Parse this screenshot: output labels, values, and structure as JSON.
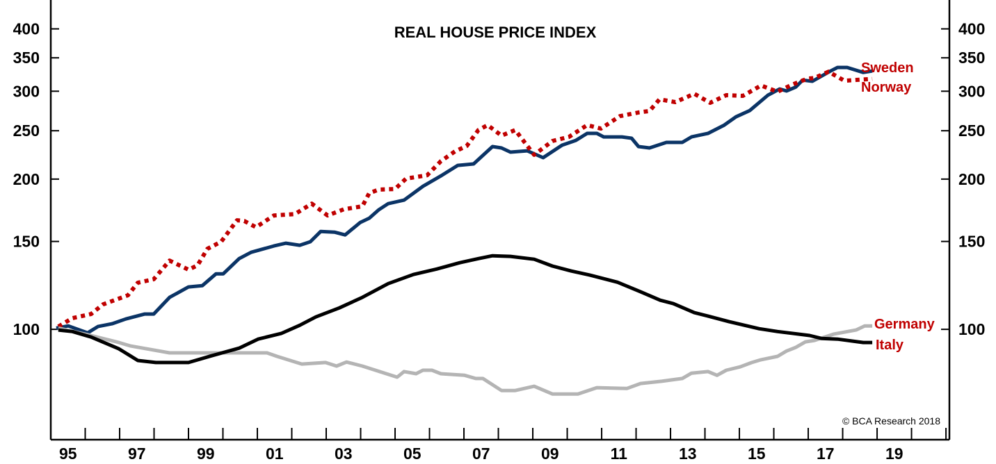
{
  "chart_data": {
    "type": "line",
    "title": "REAL HOUSE PRICE INDEX",
    "xlabel": "",
    "ylabel": "",
    "y_scale": "log",
    "ylim": [
      60.1,
      457
    ],
    "xlim": [
      1995,
      2021.1
    ],
    "y_ticks": [
      100,
      150,
      200,
      250,
      300,
      350,
      400
    ],
    "y_tick_labels": [
      "100",
      "150",
      "200",
      "250",
      "300",
      "350",
      "400"
    ],
    "x_ticks_years": [
      1995,
      1996,
      1997,
      1998,
      1999,
      2000,
      2001,
      2002,
      2003,
      2004,
      2005,
      2006,
      2007,
      2008,
      2009,
      2010,
      2011,
      2012,
      2013,
      2014,
      2015,
      2016,
      2017,
      2018,
      2019,
      2020,
      2021
    ],
    "x_tick_labels": [
      {
        "year": 1995.5,
        "label": "95"
      },
      {
        "year": 1997.5,
        "label": "97"
      },
      {
        "year": 1999.5,
        "label": "99"
      },
      {
        "year": 2001.5,
        "label": "01"
      },
      {
        "year": 2003.5,
        "label": "03"
      },
      {
        "year": 2005.5,
        "label": "05"
      },
      {
        "year": 2007.5,
        "label": "07"
      },
      {
        "year": 2009.5,
        "label": "09"
      },
      {
        "year": 2011.5,
        "label": "11"
      },
      {
        "year": 2013.5,
        "label": "13"
      },
      {
        "year": 2015.5,
        "label": "15"
      },
      {
        "year": 2017.5,
        "label": "17"
      },
      {
        "year": 2019.5,
        "label": "19"
      }
    ],
    "grid": false,
    "credit": "© BCA Research 2018",
    "series": [
      {
        "name": "Sweden",
        "color": "#0b3466",
        "style": "solid",
        "x": [
          1995.16,
          1995.51,
          1996.07,
          1996.37,
          1996.78,
          1997.18,
          1997.73,
          1997.99,
          1998.45,
          1999.0,
          1999.4,
          1999.8,
          2000.01,
          2000.47,
          2000.82,
          2001.48,
          2001.83,
          2002.23,
          2002.54,
          2002.84,
          2003.24,
          2003.55,
          2003.99,
          2004.25,
          2004.52,
          2004.8,
          2005.26,
          2005.81,
          2006.33,
          2006.82,
          2007.28,
          2007.83,
          2008.09,
          2008.35,
          2008.84,
          2009.3,
          2009.85,
          2010.25,
          2010.58,
          2010.86,
          2011.06,
          2011.59,
          2011.87,
          2012.07,
          2012.39,
          2012.88,
          2013.34,
          2013.61,
          2014.09,
          2014.56,
          2014.9,
          2015.3,
          2015.83,
          2016.17,
          2016.37,
          2016.64,
          2016.84,
          2017.12,
          2017.65,
          2017.85,
          2018.13,
          2018.6,
          2018.86
        ],
        "values": [
          100.6,
          101.6,
          98.4,
          101.3,
          102.6,
          104.9,
          107.3,
          107.3,
          115.9,
          121.6,
          122.3,
          129.2,
          129.2,
          138.6,
          142.7,
          146.9,
          148.8,
          147.4,
          149.8,
          157.1,
          156.6,
          154.6,
          163.8,
          167.0,
          173.5,
          178.6,
          181.5,
          193.5,
          203.0,
          213.1,
          214.5,
          232.4,
          230.9,
          226.5,
          227.9,
          220.8,
          233.9,
          239.1,
          247.0,
          247.0,
          243.0,
          243.0,
          241.5,
          232.4,
          230.9,
          236.9,
          236.9,
          243.0,
          247.0,
          256.6,
          266.6,
          274.4,
          294.6,
          303.1,
          300.3,
          305.9,
          315.8,
          314.1,
          329.4,
          334.8,
          334.8,
          327.1,
          329.4
        ]
      },
      {
        "name": "Norway",
        "color": "#c00000",
        "style": "dotted",
        "x": [
          1995.22,
          1995.63,
          1996.17,
          1996.52,
          1997.24,
          1997.53,
          1997.99,
          1998.45,
          1999.0,
          1999.26,
          1999.55,
          1999.95,
          2000.41,
          2000.62,
          2000.96,
          2001.48,
          2002.09,
          2002.58,
          2003.04,
          2003.51,
          2004.05,
          2004.25,
          2004.52,
          2005.0,
          2005.32,
          2005.93,
          2006.33,
          2006.74,
          2007.08,
          2007.42,
          2007.69,
          2008.09,
          2008.49,
          2009.04,
          2009.57,
          2010.05,
          2010.58,
          2010.98,
          2011.53,
          2012.07,
          2012.39,
          2012.68,
          2013.14,
          2013.69,
          2014.15,
          2014.62,
          2015.1,
          2015.63,
          2016.11,
          2016.52,
          2016.98,
          2017.18,
          2017.59,
          2018.05,
          2018.86
        ],
        "values": [
          101.3,
          105.3,
          107.3,
          112.2,
          117.0,
          124.0,
          126.0,
          137.3,
          131.7,
          134.3,
          145.0,
          149.8,
          165.4,
          164.9,
          160.2,
          169.1,
          170.2,
          178.6,
          169.1,
          174.0,
          176.4,
          187.5,
          190.5,
          191.1,
          200.5,
          203.6,
          217.3,
          227.3,
          233.0,
          250.8,
          256.6,
          244.5,
          250.8,
          223.7,
          238.4,
          243.0,
          256.6,
          252.5,
          267.4,
          272.0,
          273.8,
          289.0,
          285.3,
          296.5,
          284.4,
          294.6,
          293.7,
          308.0,
          299.3,
          309.0,
          318.0,
          318.9,
          328.3,
          314.9,
          317.5
        ]
      },
      {
        "name": "Germany",
        "color": "#b4b4b4",
        "style": "solid",
        "x": [
          1995.22,
          1996.17,
          1996.98,
          1997.32,
          1998.45,
          2001.28,
          2001.57,
          2002.29,
          2002.98,
          2003.3,
          2003.59,
          2004.05,
          2005.06,
          2005.26,
          2005.61,
          2005.81,
          2006.07,
          2006.33,
          2007.02,
          2007.34,
          2007.55,
          2008.09,
          2008.49,
          2009.04,
          2009.57,
          2010.31,
          2010.86,
          2011.73,
          2012.13,
          2012.74,
          2013.34,
          2013.61,
          2014.09,
          2014.35,
          2014.62,
          2015.02,
          2015.36,
          2015.63,
          2016.11,
          2016.37,
          2016.64,
          2016.92,
          2017.18,
          2017.73,
          2018.39,
          2018.64,
          2018.86
        ],
        "values": [
          100.6,
          97.2,
          94.1,
          92.6,
          89.7,
          89.7,
          88.3,
          85.2,
          85.8,
          84.4,
          86.0,
          84.4,
          80.2,
          82.3,
          81.5,
          82.8,
          82.8,
          81.5,
          80.9,
          79.7,
          79.7,
          75.4,
          75.4,
          76.9,
          74.2,
          74.2,
          76.4,
          76.1,
          77.9,
          78.7,
          79.7,
          81.7,
          82.3,
          80.9,
          82.8,
          84.1,
          85.8,
          86.9,
          88.3,
          90.5,
          92.0,
          94.4,
          95.0,
          97.8,
          99.7,
          101.6,
          101.6
        ]
      },
      {
        "name": "Italy",
        "color": "#000000",
        "style": "solid",
        "x": [
          1995.22,
          1995.63,
          1996.17,
          1996.98,
          1997.53,
          1998.05,
          1999.0,
          1999.67,
          2000.47,
          2001.02,
          2001.69,
          2002.23,
          2002.7,
          2003.38,
          2004.05,
          2004.8,
          2005.53,
          2006.21,
          2006.88,
          2007.42,
          2007.83,
          2008.35,
          2009.04,
          2009.57,
          2010.11,
          2010.66,
          2011.46,
          2012.13,
          2012.7,
          2013.08,
          2013.69,
          2014.09,
          2014.7,
          2015.57,
          2016.11,
          2017.04,
          2017.38,
          2017.85,
          2018.6,
          2018.86
        ],
        "values": [
          99.7,
          99.0,
          96.5,
          91.4,
          86.6,
          85.8,
          85.8,
          88.5,
          91.7,
          95.6,
          98.1,
          101.9,
          105.9,
          110.4,
          115.9,
          123.5,
          128.8,
          132.1,
          136.0,
          138.6,
          140.4,
          140.0,
          138.2,
          133.9,
          130.9,
          128.4,
          124.3,
          118.9,
          114.4,
          112.6,
          108.0,
          106.3,
          103.6,
          100.3,
          99.0,
          97.2,
          95.9,
          95.6,
          94.1,
          94.1
        ]
      }
    ],
    "series_labels": [
      {
        "series": "Sweden",
        "text": "Sweden",
        "color": "#c00000"
      },
      {
        "series": "Norway",
        "text": "Norway",
        "color": "#c00000"
      },
      {
        "series": "Germany",
        "text": "Germany",
        "color": "#c00000"
      },
      {
        "series": "Italy",
        "text": "Italy",
        "color": "#c00000"
      }
    ]
  }
}
